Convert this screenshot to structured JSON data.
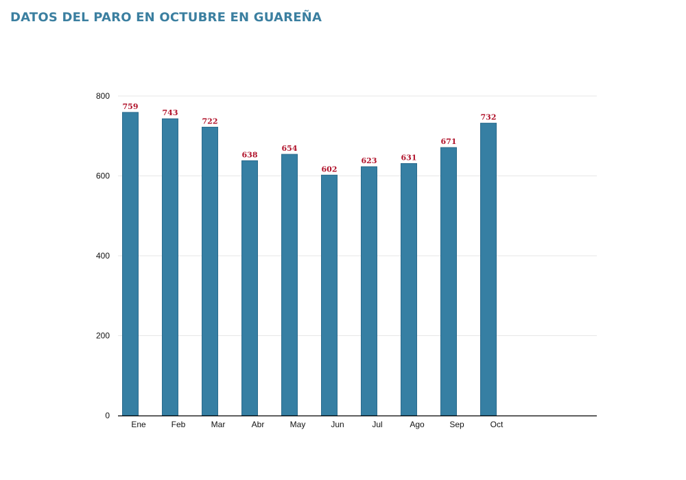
{
  "page": {
    "title": "DATOS DEL PARO EN OCTUBRE EN GUAREÑA"
  },
  "chart_data": {
    "type": "bar",
    "title": "",
    "xlabel": "",
    "ylabel": "",
    "categories": [
      "Ene",
      "Feb",
      "Mar",
      "Abr",
      "May",
      "Jun",
      "Jul",
      "Ago",
      "Sep",
      "Oct"
    ],
    "values": [
      759,
      743,
      722,
      638,
      654,
      602,
      623,
      631,
      671,
      732
    ],
    "ylim": [
      0,
      800
    ],
    "yticks": [
      0,
      200,
      400,
      600,
      800
    ],
    "grid": true,
    "legend": "none",
    "colors": {
      "bar": "#367fa3",
      "bar_edge": "#2a6a8c",
      "data_label": "#b0122a",
      "title": "#3b7fa0",
      "grid": "#e6e6e6",
      "axis": "#000000"
    }
  }
}
